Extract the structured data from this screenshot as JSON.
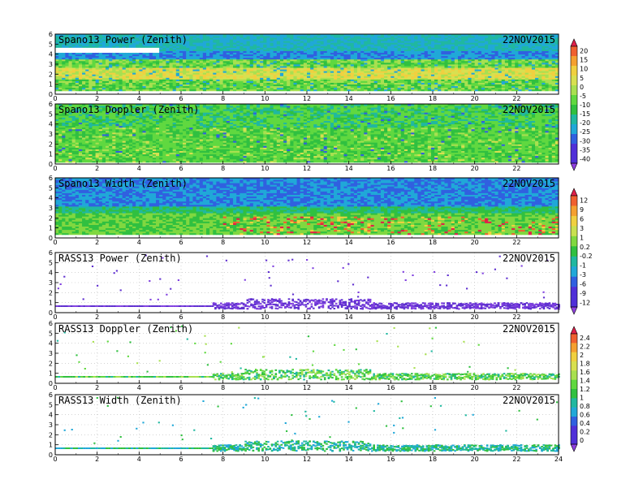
{
  "chart_data": [
    {
      "type": "heatmap",
      "title": "Spano13 Power (Zenith)",
      "date": "22NOV2015",
      "xlim": [
        0,
        24
      ],
      "ylim": [
        0,
        6
      ],
      "x_ticks": [
        0,
        2,
        4,
        6,
        8,
        10,
        12,
        14,
        16,
        18,
        20,
        22
      ],
      "y_ticks": [
        0,
        1,
        2,
        3,
        4,
        5,
        6
      ],
      "pattern": "power",
      "colorbar": "A"
    },
    {
      "type": "heatmap",
      "title": "Spano13 Doppler (Zenith)",
      "date": "22NOV2015",
      "xlim": [
        0,
        24
      ],
      "ylim": [
        0,
        6
      ],
      "x_ticks": [
        0,
        2,
        4,
        6,
        8,
        10,
        12,
        14,
        16,
        18,
        20,
        22
      ],
      "y_ticks": [
        0,
        1,
        2,
        3,
        4,
        5,
        6
      ],
      "pattern": "doppler",
      "colorbar": "A"
    },
    {
      "type": "heatmap",
      "title": "Spano13 Width (Zenith)",
      "date": "22NOV2015",
      "xlim": [
        0,
        24
      ],
      "ylim": [
        0,
        6
      ],
      "x_ticks": [
        0,
        2,
        4,
        6,
        8,
        10,
        12,
        14,
        16,
        18,
        20,
        22
      ],
      "y_ticks": [
        0,
        1,
        2,
        3,
        4,
        5,
        6
      ],
      "pattern": "width",
      "colorbar": "B"
    },
    {
      "type": "scatter",
      "title": "RASS13 Power (Zenith)",
      "date": "22NOV2015",
      "xlim": [
        0,
        24
      ],
      "ylim": [
        0,
        6
      ],
      "x_ticks": [
        0,
        2,
        4,
        6,
        8,
        10,
        12,
        14,
        16,
        18,
        20,
        22
      ],
      "y_ticks": [
        0,
        1,
        2,
        3,
        4,
        5,
        6
      ],
      "pattern": "rass-power",
      "colorbar": "B"
    },
    {
      "type": "scatter",
      "title": "RASS13 Doppler (Zenith)",
      "date": "22NOV2015",
      "xlim": [
        0,
        24
      ],
      "ylim": [
        0,
        6
      ],
      "x_ticks": [
        0,
        2,
        4,
        6,
        8,
        10,
        12,
        14,
        16,
        18,
        20,
        22
      ],
      "y_ticks": [
        0,
        1,
        2,
        3,
        4,
        5,
        6
      ],
      "pattern": "rass-doppler",
      "colorbar": "C"
    },
    {
      "type": "scatter",
      "title": "RASS13 Width (Zenith)",
      "date": "22NOV2015",
      "xlim": [
        0,
        24
      ],
      "ylim": [
        0,
        6
      ],
      "x_ticks": [
        0,
        2,
        4,
        6,
        8,
        10,
        12,
        14,
        16,
        18,
        20,
        22,
        24
      ],
      "y_ticks": [
        0,
        1,
        2,
        3,
        4,
        5,
        6
      ],
      "pattern": "rass-width",
      "colorbar": "C"
    }
  ],
  "colorbars": {
    "A": {
      "labels": [
        "20",
        "15",
        "10",
        "5",
        "0",
        "-5",
        "-10",
        "-15",
        "-20",
        "-25",
        "-30",
        "-35",
        "-40"
      ],
      "colors": [
        "#e0204a",
        "#f06030",
        "#f5a030",
        "#f0d040",
        "#d8e050",
        "#a8e050",
        "#60d840",
        "#30c040",
        "#20b8a0",
        "#20a8d8",
        "#3060e0",
        "#5030d8",
        "#9040e0"
      ]
    },
    "B": {
      "labels": [
        "12",
        "9",
        "6",
        "3",
        "1",
        "0.2",
        "-0.2",
        "-1",
        "-3",
        "-6",
        "-9",
        "-12"
      ],
      "colors": [
        "#e0204a",
        "#f06030",
        "#f5a030",
        "#f0d040",
        "#c8e050",
        "#80d840",
        "#30c040",
        "#20b8a0",
        "#20a8d8",
        "#3060e0",
        "#5030d8",
        "#9040e0"
      ]
    },
    "C": {
      "labels": [
        "2.4",
        "2.2",
        "2",
        "1.8",
        "1.6",
        "1.4",
        "1.2",
        "1",
        "0.8",
        "0.6",
        "0.4",
        "0.2",
        "0"
      ],
      "colors": [
        "#e0204a",
        "#f06030",
        "#f5a030",
        "#f0d040",
        "#d8e050",
        "#a8e050",
        "#60d840",
        "#30c040",
        "#20b8a0",
        "#20a8d8",
        "#3060e0",
        "#5030d8",
        "#9040e0"
      ]
    }
  }
}
